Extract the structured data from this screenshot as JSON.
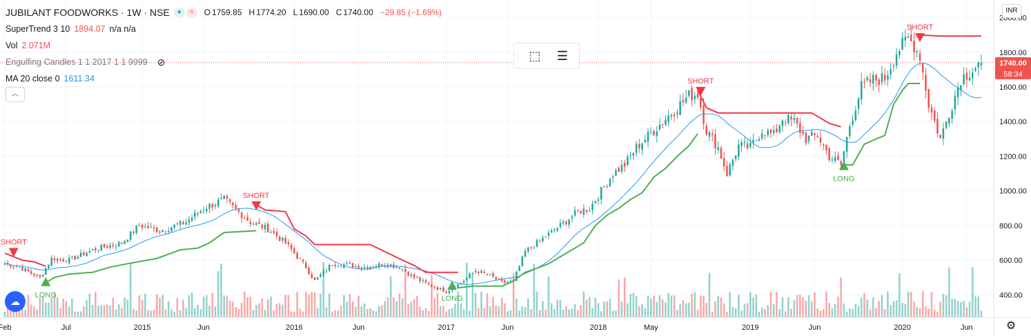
{
  "header": {
    "title": "JUBILANT FOODWORKS · 1W · NSE",
    "open_label": "O",
    "open": "1759.85",
    "high_label": "H",
    "high": "1774.20",
    "low_label": "L",
    "low": "1690.00",
    "close_label": "C",
    "close": "1740.00",
    "change": "−29.85 (−1.69%)"
  },
  "indicators": [
    {
      "label": "SuperTrend 3 10",
      "value": "1894.07",
      "extra": "n/a  n/a",
      "color": "#ef5350"
    },
    {
      "label": "Vol",
      "value": "2.071M",
      "extra": "",
      "color": "#ef5350"
    },
    {
      "label": "Engulfing Candles 1 1 2017 1 1 9999",
      "value": "",
      "extra": "",
      "color": "#787b86"
    },
    {
      "label": "MA 20 close 0",
      "value": "1611.34",
      "extra": "",
      "color": "#2196f3"
    }
  ],
  "currency": "INR",
  "price_tag": {
    "value": "1740.00",
    "countdown": "58:34",
    "color": "#ef5350"
  },
  "colors": {
    "up": "#26a69a",
    "down": "#ef5350",
    "st_up": "#4caf50",
    "st_down": "#f23645",
    "ma": "#2196f3",
    "grid": "#f0f3fa",
    "axis_text": "#131722"
  },
  "chart_data": {
    "type": "candlestick",
    "interval": "1W",
    "y_axis": {
      "ticks": [
        400,
        600,
        800,
        1000,
        1200,
        1400,
        1600,
        1800,
        2000
      ],
      "tick_labels": [
        "400.00",
        "600.00",
        "800.00",
        "1000.00",
        "1200.00",
        "1400.00",
        "1600.00",
        "1800.00",
        "2000.00"
      ],
      "ylim": [
        270,
        2070
      ]
    },
    "x_axis": {
      "labels": [
        {
          "text": "Feb",
          "t": 0
        },
        {
          "text": "Jul",
          "t": 21
        },
        {
          "text": "2015",
          "t": 47
        },
        {
          "text": "Jun",
          "t": 68
        },
        {
          "text": "2016",
          "t": 99
        },
        {
          "text": "Jun",
          "t": 121
        },
        {
          "text": "2017",
          "t": 151
        },
        {
          "text": "Jun",
          "t": 172
        },
        {
          "text": "2018",
          "t": 203
        },
        {
          "text": "May",
          "t": 221
        },
        {
          "text": "2019",
          "t": 255
        },
        {
          "text": "Jun",
          "t": 277
        },
        {
          "text": "2020",
          "t": 307
        },
        {
          "text": "Jun",
          "t": 329
        }
      ],
      "t_range": [
        0,
        334
      ]
    },
    "close_anchors": [
      [
        0,
        580
      ],
      [
        5,
        560
      ],
      [
        12,
        500
      ],
      [
        16,
        610
      ],
      [
        22,
        600
      ],
      [
        30,
        660
      ],
      [
        40,
        700
      ],
      [
        46,
        800
      ],
      [
        53,
        770
      ],
      [
        62,
        820
      ],
      [
        68,
        900
      ],
      [
        75,
        950
      ],
      [
        84,
        820
      ],
      [
        90,
        780
      ],
      [
        96,
        700
      ],
      [
        103,
        560
      ],
      [
        106,
        480
      ],
      [
        112,
        580
      ],
      [
        118,
        570
      ],
      [
        124,
        560
      ],
      [
        130,
        580
      ],
      [
        135,
        560
      ],
      [
        140,
        500
      ],
      [
        146,
        450
      ],
      [
        151,
        420
      ],
      [
        156,
        470
      ],
      [
        161,
        540
      ],
      [
        166,
        510
      ],
      [
        170,
        470
      ],
      [
        174,
        480
      ],
      [
        178,
        650
      ],
      [
        182,
        700
      ],
      [
        190,
        800
      ],
      [
        196,
        880
      ],
      [
        200,
        900
      ],
      [
        204,
        1000
      ],
      [
        208,
        1100
      ],
      [
        212,
        1150
      ],
      [
        216,
        1250
      ],
      [
        222,
        1350
      ],
      [
        228,
        1450
      ],
      [
        234,
        1550
      ],
      [
        237,
        1560
      ],
      [
        240,
        1350
      ],
      [
        244,
        1250
      ],
      [
        247,
        1100
      ],
      [
        251,
        1260
      ],
      [
        255,
        1250
      ],
      [
        259,
        1350
      ],
      [
        263,
        1320
      ],
      [
        266,
        1420
      ],
      [
        270,
        1400
      ],
      [
        274,
        1300
      ],
      [
        278,
        1320
      ],
      [
        282,
        1200
      ],
      [
        286,
        1150
      ],
      [
        289,
        1380
      ],
      [
        293,
        1600
      ],
      [
        297,
        1640
      ],
      [
        301,
        1650
      ],
      [
        305,
        1800
      ],
      [
        309,
        1880
      ],
      [
        311,
        1840
      ],
      [
        313,
        1780
      ],
      [
        316,
        1500
      ],
      [
        318,
        1400
      ],
      [
        320,
        1300
      ],
      [
        323,
        1450
      ],
      [
        327,
        1650
      ],
      [
        331,
        1700
      ],
      [
        334,
        1740
      ]
    ],
    "ma20": {
      "name": "MA 20 close 0",
      "last": 1611.34
    },
    "supertrend": {
      "name": "SuperTrend 3 10",
      "last": 1894.07,
      "segments": [
        {
          "dir": "down",
          "points": [
            [
              0,
              640
            ],
            [
              3,
              620
            ],
            [
              6,
              600
            ],
            [
              10,
              590
            ],
            [
              14,
              565
            ]
          ]
        },
        {
          "dir": "up",
          "points": [
            [
              14,
              470
            ],
            [
              17,
              500
            ],
            [
              22,
              520
            ],
            [
              30,
              530
            ],
            [
              36,
              560
            ],
            [
              42,
              580
            ],
            [
              52,
              610
            ],
            [
              60,
              660
            ],
            [
              66,
              670
            ],
            [
              70,
              700
            ],
            [
              75,
              760
            ],
            [
              86,
              770
            ]
          ]
        },
        {
          "dir": "down",
          "points": [
            [
              86,
              920
            ],
            [
              89,
              890
            ],
            [
              96,
              880
            ],
            [
              99,
              780
            ],
            [
              103,
              740
            ],
            [
              106,
              690
            ],
            [
              125,
              690
            ],
            [
              130,
              650
            ],
            [
              136,
              600
            ],
            [
              140,
              570
            ],
            [
              144,
              530
            ],
            [
              155,
              530
            ]
          ]
        },
        {
          "dir": "up",
          "points": [
            [
              155,
              440
            ],
            [
              160,
              450
            ],
            [
              170,
              450
            ],
            [
              174,
              480
            ],
            [
              178,
              530
            ],
            [
              183,
              560
            ],
            [
              186,
              580
            ],
            [
              190,
              620
            ],
            [
              194,
              660
            ],
            [
              198,
              700
            ],
            [
              202,
              800
            ],
            [
              206,
              860
            ],
            [
              210,
              900
            ],
            [
              214,
              950
            ],
            [
              218,
              990
            ],
            [
              222,
              1080
            ],
            [
              226,
              1130
            ],
            [
              230,
              1200
            ],
            [
              234,
              1260
            ],
            [
              237,
              1330
            ]
          ]
        },
        {
          "dir": "down",
          "points": [
            [
              237,
              1580
            ],
            [
              240,
              1480
            ],
            [
              244,
              1450
            ],
            [
              262,
              1450
            ],
            [
              276,
              1450
            ],
            [
              278,
              1430
            ],
            [
              282,
              1390
            ],
            [
              286,
              1370
            ]
          ]
        },
        {
          "dir": "up",
          "points": [
            [
              286,
              1150
            ],
            [
              290,
              1150
            ],
            [
              294,
              1270
            ],
            [
              298,
              1300
            ],
            [
              301,
              1320
            ],
            [
              304,
              1500
            ],
            [
              307,
              1580
            ],
            [
              309,
              1620
            ],
            [
              313,
              1620
            ]
          ]
        },
        {
          "dir": "down",
          "points": [
            [
              313,
              1900
            ],
            [
              320,
              1894
            ],
            [
              334,
              1894
            ]
          ]
        }
      ]
    },
    "signals": [
      {
        "label": "SHORT",
        "type": "short",
        "t": 3,
        "price": 670
      },
      {
        "label": "LONG",
        "type": "long",
        "t": 14,
        "price": 450
      },
      {
        "label": "SHORT",
        "type": "short",
        "t": 86,
        "price": 940
      },
      {
        "label": "LONG",
        "type": "long",
        "t": 153,
        "price": 430
      },
      {
        "label": "SHORT",
        "type": "short",
        "t": 238,
        "price": 1600
      },
      {
        "label": "LONG",
        "type": "long",
        "t": 287,
        "price": 1120
      },
      {
        "label": "SHORT",
        "type": "short",
        "t": 313,
        "price": 1910
      }
    ],
    "volume": {
      "name": "Vol",
      "last": "2.071M"
    }
  }
}
